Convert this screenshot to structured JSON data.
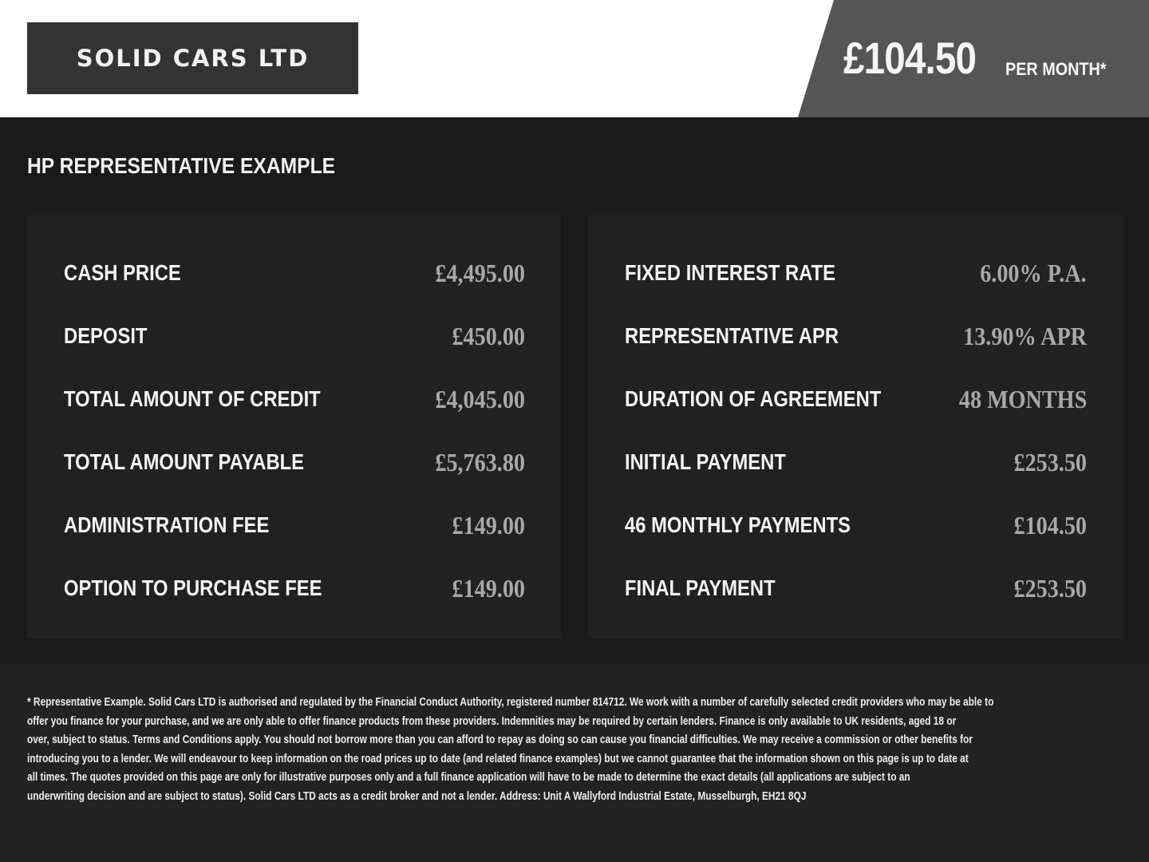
{
  "logo": {
    "text": "SOLID CARS LTD"
  },
  "headline": {
    "price": "£104.50",
    "suffix": "PER MONTH*"
  },
  "title": "HP REPRESENTATIVE EXAMPLE",
  "left_rows": [
    {
      "label": "CASH PRICE",
      "value": "£4,495.00"
    },
    {
      "label": "DEPOSIT",
      "value": "£450.00"
    },
    {
      "label": "TOTAL AMOUNT OF CREDIT",
      "value": "£4,045.00"
    },
    {
      "label": "TOTAL AMOUNT PAYABLE",
      "value": "£5,763.80"
    },
    {
      "label": "ADMINISTRATION FEE",
      "value": "£149.00"
    },
    {
      "label": "OPTION TO PURCHASE FEE",
      "value": "£149.00"
    }
  ],
  "right_rows": [
    {
      "label": "FIXED INTEREST RATE",
      "value": "6.00% P.A."
    },
    {
      "label": "REPRESENTATIVE APR",
      "value": "13.90% APR"
    },
    {
      "label": "DURATION OF AGREEMENT",
      "value": "48 MONTHS"
    },
    {
      "label": "INITIAL PAYMENT",
      "value": "£253.50"
    },
    {
      "label": "46 MONTHLY PAYMENTS",
      "value": "£104.50"
    },
    {
      "label": "FINAL PAYMENT",
      "value": "£253.50"
    }
  ],
  "disclaimer_lines": [
    "* Representative Example. Solid Cars LTD is authorised and regulated by the Financial Conduct Authority, registered number 814712. We work with a number of carefully selected credit providers who may be able to",
    "offer you finance for your purchase, and we are only able to offer finance products from these providers. Indemnities may be required by certain lenders. Finance is only available to UK residents, aged 18 or",
    "over, subject to status. Terms and Conditions apply. You should not borrow more than you can afford to repay as doing so can cause you financial difficulties. We may receive a commission or other benefits for",
    "introducing you to a lender. We will endeavour to keep information on the road prices up to date (and related finance examples) but we cannot guarantee that the information shown on this page is up to date at",
    "all times. The quotes provided on this page are only for illustrative purposes only and a full finance application will have to be made to determine the exact details (all applications are subject to an",
    "underwriting decision and are subject to status). Solid Cars LTD acts as a credit broker and not a lender. Address: Unit A Wallyford Industrial Estate, Musselburgh, EH21 8QJ"
  ]
}
